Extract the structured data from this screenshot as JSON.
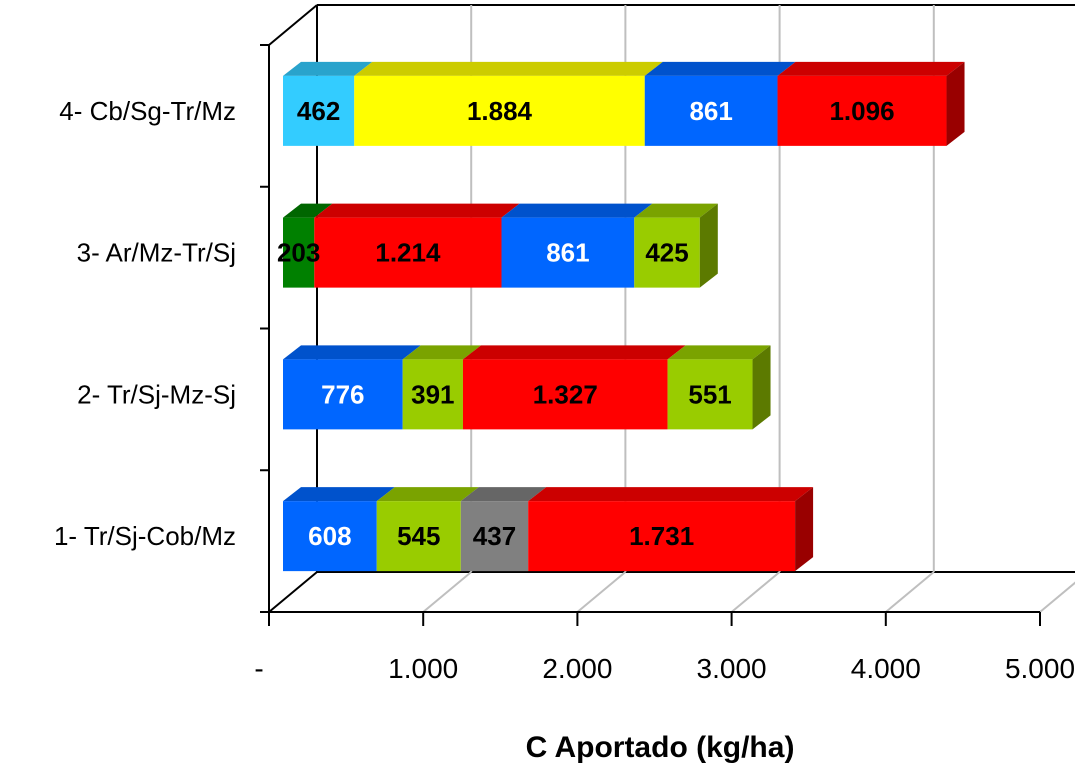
{
  "chart_data": {
    "type": "bar",
    "orientation": "horizontal",
    "stacked": true,
    "style_3d": true,
    "xlabel": "C Aportado (kg/ha)",
    "xlim": [
      0,
      5000
    ],
    "x_ticks": [
      0,
      1000,
      2000,
      3000,
      4000,
      5000
    ],
    "x_tick_labels": [
      "-",
      "1.000",
      "2.000",
      "3.000",
      "4.000",
      "5.000"
    ],
    "grid": "vertical",
    "legend": "none",
    "categories": [
      "1- Tr/Sj-Cob/Mz",
      "2- Tr/Sj-Mz-Sj",
      "3- Ar/Mz-Tr/Sj",
      "4- Cb/Sg-Tr/Mz"
    ],
    "bars": [
      {
        "category": "1- Tr/Sj-Cob/Mz",
        "segments": [
          {
            "value": 608,
            "label": "608",
            "color": "#0066FF",
            "text_color": "#FFFFFF"
          },
          {
            "value": 545,
            "label": "545",
            "color": "#99CC00",
            "text_color": "#000000"
          },
          {
            "value": 437,
            "label": "437",
            "color": "#808080",
            "text_color": "#000000"
          },
          {
            "value": 1731,
            "label": "1.731",
            "color": "#FF0000",
            "text_color": "#000000"
          }
        ]
      },
      {
        "category": "2- Tr/Sj-Mz-Sj",
        "segments": [
          {
            "value": 776,
            "label": "776",
            "color": "#0066FF",
            "text_color": "#FFFFFF"
          },
          {
            "value": 391,
            "label": "391",
            "color": "#99CC00",
            "text_color": "#000000"
          },
          {
            "value": 1327,
            "label": "1.327",
            "color": "#FF0000",
            "text_color": "#000000"
          },
          {
            "value": 551,
            "label": "551",
            "color": "#99CC00",
            "text_color": "#000000"
          }
        ]
      },
      {
        "category": "3- Ar/Mz-Tr/Sj",
        "segments": [
          {
            "value": 203,
            "label": "203",
            "color": "#008000",
            "text_color": "#000000"
          },
          {
            "value": 1214,
            "label": "1.214",
            "color": "#FF0000",
            "text_color": "#000000"
          },
          {
            "value": 861,
            "label": "861",
            "color": "#0066FF",
            "text_color": "#FFFFFF"
          },
          {
            "value": 425,
            "label": "425",
            "color": "#99CC00",
            "text_color": "#000000"
          }
        ]
      },
      {
        "category": "4- Cb/Sg-Tr/Mz",
        "segments": [
          {
            "value": 462,
            "label": "462",
            "color": "#33CCFF",
            "text_color": "#000000"
          },
          {
            "value": 1884,
            "label": "1.884",
            "color": "#FFFF00",
            "text_color": "#000000"
          },
          {
            "value": 861,
            "label": "861",
            "color": "#0066FF",
            "text_color": "#FFFFFF"
          },
          {
            "value": 1096,
            "label": "1.096",
            "color": "#FF0000",
            "text_color": "#000000"
          }
        ]
      }
    ]
  }
}
